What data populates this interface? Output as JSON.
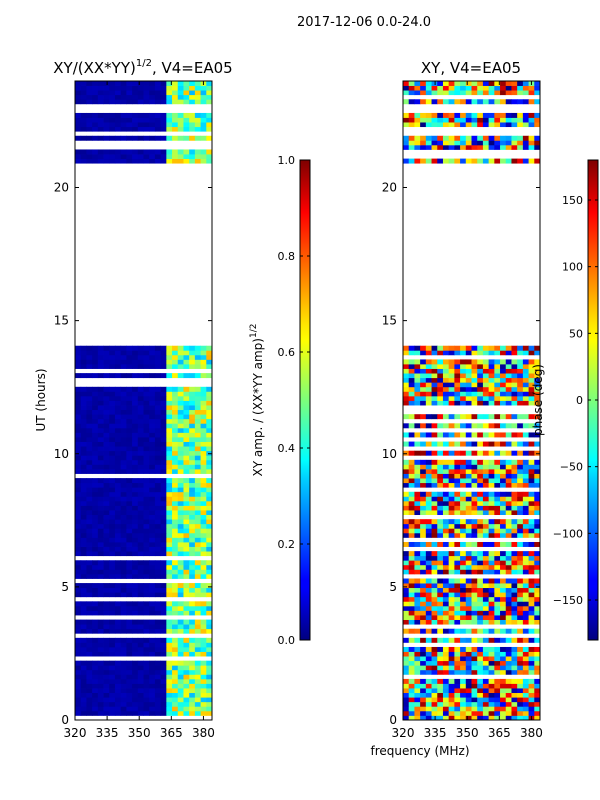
{
  "figure": {
    "suptitle": "2017-12-06 0.0-24.0",
    "xlabel_shared": "frequency (MHz)"
  },
  "chart_data": [
    {
      "type": "heatmap",
      "title": "XY/(XX*YY)",
      "title_exponent": "1/2",
      "title_suffix": ", V4=EA05",
      "ylabel": "UT (hours)",
      "xlim": [
        320,
        384
      ],
      "ylim": [
        0,
        24
      ],
      "xticks": [
        "320",
        "335",
        "350",
        "365",
        "380"
      ],
      "yticks": [
        "0",
        "5",
        "10",
        "15",
        "20"
      ],
      "gap_hours": [
        14,
        21
      ],
      "colorbar": {
        "label": "XY amp. / (XX*YY amp)",
        "label_exponent": "1/2",
        "range": [
          0.0,
          1.0
        ],
        "ticks": [
          "0.0",
          "0.2",
          "0.4",
          "0.6",
          "0.8",
          "1.0"
        ],
        "colormap": "jet"
      }
    },
    {
      "type": "heatmap",
      "title": "XY, V4=EA05",
      "ylabel": "",
      "xlim": [
        320,
        384
      ],
      "ylim": [
        0,
        24
      ],
      "xticks": [
        "320",
        "335",
        "350",
        "365",
        "380"
      ],
      "yticks": [
        "0",
        "5",
        "10",
        "15",
        "20"
      ],
      "gap_hours": [
        14,
        21
      ],
      "colorbar": {
        "label": "phase (deg)",
        "range": [
          -180,
          180
        ],
        "ticks": [
          "−150",
          "−100",
          "−50",
          "0",
          "50",
          "100",
          "150"
        ],
        "colormap": "jet"
      }
    }
  ]
}
